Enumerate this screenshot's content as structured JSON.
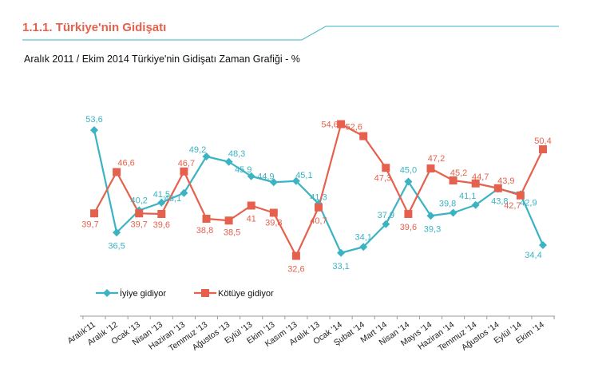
{
  "page": {
    "heading": "1.1.1. Türkiye'nin Gidişatı",
    "subtitle": "Aralık 2011 / Ekim 2014 Türkiye'nin Gidişatı  Zaman Grafiği  - %",
    "accent_color": "#e5614d",
    "rule_color": "#3bb3c3"
  },
  "chart_data": {
    "type": "line",
    "categories": [
      "Aralık'11",
      "Aralık '12",
      "Ocak '13",
      "Nisan '13",
      "Haziran '13",
      "Temmuz '13",
      "Ağustos '13",
      "Eylül '13",
      "Ekim '13",
      "Kasım '13",
      "Aralık '13",
      "Ocak '14",
      "Şubat '14",
      "Mart '14",
      "Nisan '14",
      "Mayıs '14",
      "Haziran '14",
      "Temmuz '14",
      "Ağustos '14",
      "Eylül '14",
      "Ekim '14"
    ],
    "series": [
      {
        "name": "İyiye gidiyor",
        "color": "#3bb3c3",
        "marker": "diamond",
        "values": [
          53.6,
          36.5,
          40.2,
          41.5,
          43.1,
          49.2,
          48.3,
          45.9,
          44.9,
          45.1,
          41.3,
          33.1,
          34.1,
          37.9,
          45.0,
          39.3,
          39.8,
          41.1,
          43.8,
          42.9,
          34.4
        ],
        "labels": [
          "53,6",
          "36,5",
          "40,2",
          "41,5",
          "43,1",
          "49,2",
          "48,3",
          "45,9",
          "44,9",
          "45,1",
          "41,3",
          "33,1",
          "34,1",
          "37,9",
          "45,0",
          "39,3",
          "39,8",
          "41,1",
          "43,8",
          "42,9",
          "34,4"
        ]
      },
      {
        "name": "Kötüye gidiyor",
        "color": "#e5614d",
        "marker": "square",
        "values": [
          39.7,
          46.6,
          39.7,
          39.6,
          46.7,
          38.8,
          38.5,
          41.0,
          39.8,
          32.6,
          40.7,
          54.6,
          52.6,
          47.3,
          39.6,
          47.2,
          45.2,
          44.7,
          43.9,
          42.7,
          50.4
        ],
        "labels": [
          "39,7",
          "46,6",
          "39,7",
          "39,6",
          "46,7",
          "38,8",
          "38,5",
          "41",
          "39,8",
          "32,6",
          "40,7",
          "54,6",
          "52,6",
          "47,3",
          "39,6",
          "47,2",
          "45,2",
          "44,7",
          "43,9",
          "42,7",
          "50,4"
        ]
      }
    ],
    "ylim": [
      30,
      58
    ],
    "grid": false,
    "legend": "left",
    "xlabel": "",
    "ylabel": ""
  }
}
